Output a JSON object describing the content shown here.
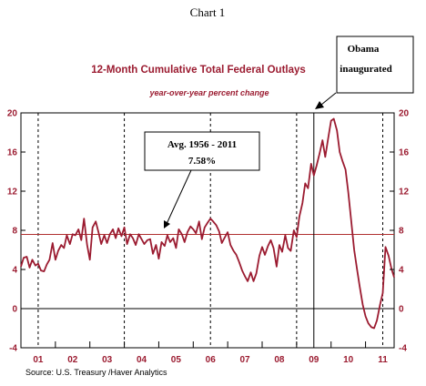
{
  "chart_data": {
    "type": "line",
    "header_label": "Chart 1",
    "title": "12-Month Cumulative Total Federal Outlays",
    "subtitle": "year-over-year percent change",
    "source": "Source:  U.S. Treasury /Haver Analytics",
    "xlabel": "",
    "ylabel": "",
    "x_start": 2000.5,
    "x_end": 2011.33,
    "ylim": [
      -4,
      20
    ],
    "y_ticks": [
      -4,
      0,
      4,
      8,
      12,
      16,
      20
    ],
    "x_tick_labels": [
      {
        "label": "01",
        "x": 2001
      },
      {
        "label": "02",
        "x": 2002
      },
      {
        "label": "03",
        "x": 2003
      },
      {
        "label": "04",
        "x": 2004
      },
      {
        "label": "05",
        "x": 2005
      },
      {
        "label": "06",
        "x": 2006
      },
      {
        "label": "07",
        "x": 2007
      },
      {
        "label": "08",
        "x": 2008
      },
      {
        "label": "09",
        "x": 2009
      },
      {
        "label": "10",
        "x": 2010
      },
      {
        "label": "11",
        "x": 2011
      }
    ],
    "dashed_year_lines": [
      2001.0,
      2003.5,
      2006.0,
      2008.5,
      2011.0
    ],
    "zero_line": 0,
    "average_line": {
      "value": 7.58,
      "label_line1": "Avg. 1956 - 2011",
      "label_line2": "7.58%",
      "color": "#b03030"
    },
    "event_line": {
      "x": 2009.0,
      "label_line1": "Obama",
      "label_line2": "inaugurated"
    },
    "grid": false,
    "series": [
      {
        "color": "#9b1b30",
        "points": [
          [
            2000.5,
            4.3
          ],
          [
            2000.58,
            5.2
          ],
          [
            2000.67,
            5.3
          ],
          [
            2000.75,
            4.2
          ],
          [
            2000.83,
            5.0
          ],
          [
            2000.92,
            4.4
          ],
          [
            2001.0,
            4.6
          ],
          [
            2001.08,
            3.9
          ],
          [
            2001.17,
            3.8
          ],
          [
            2001.25,
            4.5
          ],
          [
            2001.33,
            5.0
          ],
          [
            2001.42,
            6.7
          ],
          [
            2001.5,
            5.0
          ],
          [
            2001.58,
            5.9
          ],
          [
            2001.67,
            6.5
          ],
          [
            2001.75,
            6.2
          ],
          [
            2001.83,
            7.5
          ],
          [
            2001.92,
            6.6
          ],
          [
            2002.0,
            7.6
          ],
          [
            2002.08,
            7.5
          ],
          [
            2002.17,
            8.1
          ],
          [
            2002.25,
            7.0
          ],
          [
            2002.33,
            9.2
          ],
          [
            2002.42,
            6.5
          ],
          [
            2002.5,
            5.0
          ],
          [
            2002.58,
            8.3
          ],
          [
            2002.67,
            8.9
          ],
          [
            2002.75,
            7.8
          ],
          [
            2002.83,
            6.6
          ],
          [
            2002.92,
            7.5
          ],
          [
            2003.0,
            6.7
          ],
          [
            2003.08,
            7.6
          ],
          [
            2003.17,
            8.1
          ],
          [
            2003.25,
            7.2
          ],
          [
            2003.33,
            8.2
          ],
          [
            2003.42,
            7.4
          ],
          [
            2003.5,
            8.3
          ],
          [
            2003.58,
            6.6
          ],
          [
            2003.67,
            7.6
          ],
          [
            2003.75,
            7.2
          ],
          [
            2003.83,
            6.5
          ],
          [
            2003.92,
            7.6
          ],
          [
            2004.0,
            7.1
          ],
          [
            2004.08,
            6.6
          ],
          [
            2004.17,
            7.0
          ],
          [
            2004.25,
            7.1
          ],
          [
            2004.33,
            5.6
          ],
          [
            2004.42,
            6.5
          ],
          [
            2004.5,
            5.1
          ],
          [
            2004.58,
            6.8
          ],
          [
            2004.67,
            6.4
          ],
          [
            2004.75,
            7.5
          ],
          [
            2004.83,
            6.8
          ],
          [
            2004.92,
            7.2
          ],
          [
            2005.0,
            6.2
          ],
          [
            2005.08,
            8.1
          ],
          [
            2005.17,
            7.6
          ],
          [
            2005.25,
            6.8
          ],
          [
            2005.33,
            7.8
          ],
          [
            2005.42,
            8.4
          ],
          [
            2005.5,
            8.1
          ],
          [
            2005.58,
            7.7
          ],
          [
            2005.67,
            8.9
          ],
          [
            2005.75,
            7.1
          ],
          [
            2005.83,
            8.3
          ],
          [
            2005.92,
            8.8
          ],
          [
            2006.0,
            9.2
          ],
          [
            2006.08,
            8.9
          ],
          [
            2006.17,
            8.5
          ],
          [
            2006.25,
            7.9
          ],
          [
            2006.33,
            6.7
          ],
          [
            2006.42,
            7.3
          ],
          [
            2006.5,
            7.8
          ],
          [
            2006.58,
            6.5
          ],
          [
            2006.67,
            5.9
          ],
          [
            2006.75,
            5.5
          ],
          [
            2006.83,
            4.8
          ],
          [
            2006.92,
            3.9
          ],
          [
            2007.0,
            3.3
          ],
          [
            2007.08,
            2.8
          ],
          [
            2007.17,
            3.7
          ],
          [
            2007.25,
            2.8
          ],
          [
            2007.33,
            3.6
          ],
          [
            2007.42,
            5.4
          ],
          [
            2007.5,
            6.3
          ],
          [
            2007.58,
            5.5
          ],
          [
            2007.67,
            6.4
          ],
          [
            2007.75,
            7.0
          ],
          [
            2007.83,
            6.2
          ],
          [
            2007.92,
            4.3
          ],
          [
            2008.0,
            6.5
          ],
          [
            2008.08,
            5.8
          ],
          [
            2008.17,
            7.5
          ],
          [
            2008.25,
            6.2
          ],
          [
            2008.33,
            5.9
          ],
          [
            2008.42,
            8.0
          ],
          [
            2008.5,
            7.3
          ],
          [
            2008.58,
            9.4
          ],
          [
            2008.67,
            10.8
          ],
          [
            2008.75,
            12.8
          ],
          [
            2008.83,
            12.3
          ],
          [
            2008.92,
            14.8
          ],
          [
            2009.0,
            13.6
          ],
          [
            2009.08,
            14.6
          ],
          [
            2009.17,
            15.9
          ],
          [
            2009.25,
            17.2
          ],
          [
            2009.33,
            15.5
          ],
          [
            2009.42,
            17.5
          ],
          [
            2009.5,
            19.2
          ],
          [
            2009.58,
            19.4
          ],
          [
            2009.67,
            18.2
          ],
          [
            2009.75,
            16.0
          ],
          [
            2009.83,
            15.1
          ],
          [
            2009.92,
            14.2
          ],
          [
            2010.0,
            11.9
          ],
          [
            2010.08,
            9.1
          ],
          [
            2010.17,
            6.0
          ],
          [
            2010.25,
            4.1
          ],
          [
            2010.33,
            2.3
          ],
          [
            2010.42,
            0.4
          ],
          [
            2010.5,
            -0.8
          ],
          [
            2010.58,
            -1.5
          ],
          [
            2010.67,
            -1.9
          ],
          [
            2010.75,
            -2.0
          ],
          [
            2010.83,
            -1.2
          ],
          [
            2010.92,
            0.4
          ],
          [
            2011.0,
            1.6
          ],
          [
            2011.08,
            6.3
          ],
          [
            2011.17,
            5.4
          ],
          [
            2011.25,
            4.1
          ],
          [
            2011.33,
            3.2
          ]
        ]
      }
    ]
  }
}
